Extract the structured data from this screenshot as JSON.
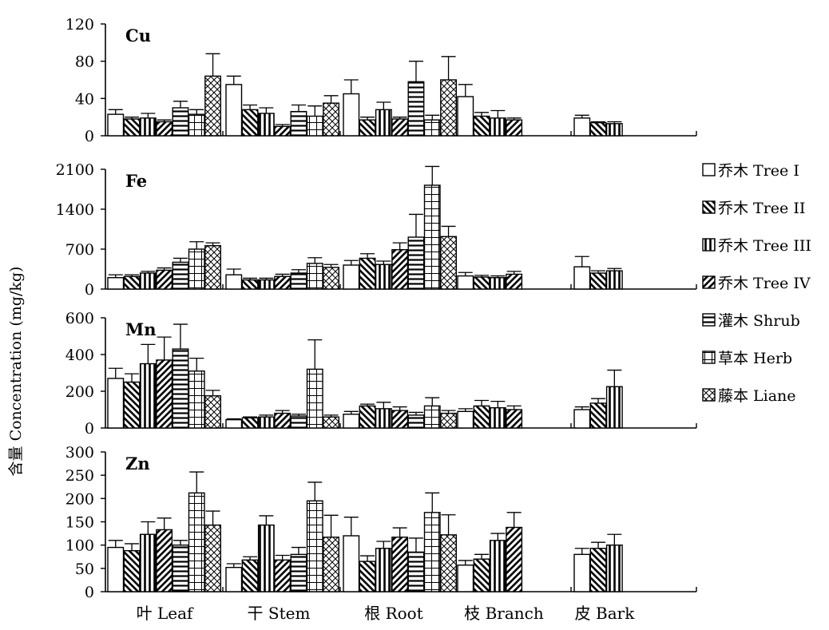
{
  "figure": {
    "ylabel": "含量 Concentration (mg/kg)"
  },
  "chart_data": {
    "type": "bar",
    "categories": [
      "叶 Leaf",
      "干 Stem",
      "根 Root",
      "枝 Branch",
      "皮 Bark"
    ],
    "legend": [
      {
        "key": "tree1",
        "label": "乔木 Tree I",
        "pattern": "blank"
      },
      {
        "key": "tree2",
        "label": "乔木 Tree II",
        "pattern": "hatch-down"
      },
      {
        "key": "tree3",
        "label": "乔木 Tree III",
        "pattern": "vertical"
      },
      {
        "key": "tree4",
        "label": "乔木 Tree IV",
        "pattern": "hatch-up"
      },
      {
        "key": "shrub",
        "label": "灌木 Shrub",
        "pattern": "horizontal"
      },
      {
        "key": "herb",
        "label": "草本 Herb",
        "pattern": "grid"
      },
      {
        "key": "liane",
        "label": "藤本 Liane",
        "pattern": "cross"
      }
    ],
    "legend_position": "right",
    "panels": [
      {
        "label": "Cu",
        "ylim": [
          0,
          120
        ],
        "yticks": [
          0,
          40,
          80,
          120
        ],
        "values": [
          [
            23,
            18,
            19,
            15,
            30,
            23,
            64
          ],
          [
            55,
            28,
            24,
            10,
            26,
            21,
            35
          ],
          [
            45,
            17,
            28,
            18,
            58,
            17,
            60
          ],
          [
            42,
            21,
            19,
            17,
            null,
            null,
            null
          ],
          [
            19,
            14,
            13,
            null,
            null,
            null,
            null
          ]
        ],
        "errors": [
          [
            5,
            2,
            5,
            2,
            7,
            5,
            24
          ],
          [
            9,
            5,
            6,
            2,
            7,
            11,
            8
          ],
          [
            15,
            3,
            8,
            2,
            22,
            5,
            25
          ],
          [
            13,
            4,
            8,
            2,
            null,
            null,
            null
          ],
          [
            3,
            1,
            2,
            null,
            null,
            null,
            null
          ]
        ]
      },
      {
        "label": "Fe",
        "ylim": [
          0,
          2100
        ],
        "yticks": [
          0,
          700,
          1400,
          2100
        ],
        "values": [
          [
            200,
            220,
            280,
            330,
            470,
            700,
            760
          ],
          [
            250,
            160,
            160,
            220,
            280,
            450,
            380
          ],
          [
            420,
            540,
            430,
            690,
            910,
            1820,
            920
          ],
          [
            230,
            210,
            200,
            260,
            null,
            null,
            null
          ],
          [
            390,
            280,
            320,
            null,
            null,
            null,
            null
          ]
        ],
        "errors": [
          [
            50,
            30,
            30,
            40,
            70,
            130,
            50
          ],
          [
            100,
            30,
            30,
            40,
            60,
            100,
            50
          ],
          [
            80,
            80,
            60,
            120,
            400,
            330,
            180
          ],
          [
            60,
            30,
            30,
            50,
            null,
            null,
            null
          ],
          [
            180,
            40,
            40,
            null,
            null,
            null,
            null
          ]
        ]
      },
      {
        "label": "Mn",
        "ylim": [
          0,
          600
        ],
        "yticks": [
          0,
          200,
          400,
          600
        ],
        "values": [
          [
            270,
            250,
            350,
            370,
            430,
            310,
            175
          ],
          [
            45,
            55,
            60,
            80,
            65,
            320,
            60
          ],
          [
            75,
            120,
            105,
            95,
            70,
            120,
            80
          ],
          [
            90,
            120,
            110,
            100,
            null,
            null,
            null
          ],
          [
            100,
            135,
            225,
            null,
            null,
            null,
            null
          ]
        ],
        "errors": [
          [
            55,
            45,
            105,
            125,
            135,
            70,
            30
          ],
          [
            5,
            5,
            10,
            15,
            10,
            160,
            10
          ],
          [
            15,
            10,
            35,
            20,
            15,
            45,
            15
          ],
          [
            15,
            30,
            35,
            20,
            null,
            null,
            null
          ],
          [
            15,
            25,
            90,
            null,
            null,
            null,
            null
          ]
        ]
      },
      {
        "label": "Zn",
        "ylim": [
          0,
          300
        ],
        "yticks": [
          0,
          50,
          100,
          150,
          200,
          250,
          300
        ],
        "values": [
          [
            95,
            88,
            123,
            133,
            100,
            212,
            143
          ],
          [
            52,
            68,
            143,
            68,
            80,
            195,
            117
          ],
          [
            120,
            65,
            93,
            117,
            85,
            170,
            122
          ],
          [
            57,
            70,
            110,
            138,
            null,
            null,
            null
          ],
          [
            80,
            93,
            100,
            null,
            null,
            null,
            null
          ]
        ],
        "errors": [
          [
            15,
            15,
            27,
            25,
            10,
            45,
            30
          ],
          [
            8,
            7,
            20,
            10,
            15,
            40,
            47
          ],
          [
            40,
            12,
            15,
            20,
            30,
            42,
            43
          ],
          [
            10,
            10,
            15,
            32,
            null,
            null,
            null
          ],
          [
            13,
            13,
            23,
            null,
            null,
            null,
            null
          ]
        ]
      }
    ]
  }
}
